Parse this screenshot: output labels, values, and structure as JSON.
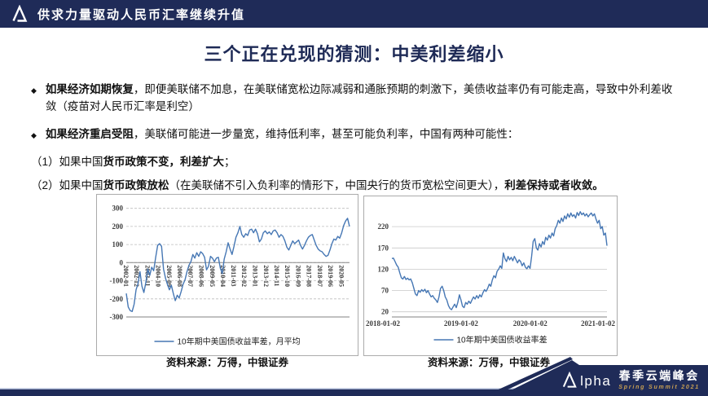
{
  "header": {
    "title": "供求力量驱动人民币汇率继续升值"
  },
  "title": "三个正在兑现的猜测：中美利差缩小",
  "bullet_char": "◆",
  "bullets": [
    {
      "bold": "如果经济如期恢复",
      "rest": "，即便美联储不加息，在美联储宽松边际减弱和通胀预期的刺激下，美债收益率仍有可能走高，导致中外利差收敛（疫苗对人民币汇率是利空）"
    },
    {
      "bold": "如果经济重启受阻",
      "rest": "，美联储可能进一步量宽，维持低利率，甚至可能负利率，中国有两种可能性："
    }
  ],
  "sub_points": [
    {
      "prefix": "（1）如果中国",
      "bold": "货币政策不变，利差扩大",
      "mid": "；",
      "bold2": ""
    },
    {
      "prefix": "（2）如果中国",
      "bold": "货币政策放松",
      "mid": "（在美联储不引入负利率的情形下，中国央行的货币宽松空间更大），",
      "bold2": "利差保持或者收敛。"
    }
  ],
  "sources": [
    "资料来源：万得，中银证券",
    "资料来源：万得，中银证券"
  ],
  "footer": {
    "logo_alpha": "lpha",
    "summit_cn": "春季云端峰会",
    "summit_en": "Spring Summit 2021"
  },
  "colors": {
    "navy": "#1F2B58",
    "line_blue": "#4677B4",
    "gold": "#C9A053"
  },
  "chart_data": [
    {
      "type": "line",
      "title": "",
      "legend": "10年期中美国债收益率差，月平均",
      "ylabel": "",
      "xlabel": "",
      "ylim": [
        -300,
        330
      ],
      "yticks": [
        300,
        200,
        100,
        0,
        -100,
        -200,
        -300
      ],
      "grid_dash": true,
      "zero_line": true,
      "x_rotated": true,
      "line_color": "#4677B4",
      "grid_color": "#BDBDBD",
      "size": [
        320,
        192
      ],
      "margins": {
        "l": 36,
        "r": 10,
        "t": 10,
        "pb": 150
      },
      "xticks": {
        "labels": [
          "2002-01",
          "2002-12",
          "2003-11",
          "2004-10",
          "2005-09",
          "2006-08",
          "2007-07",
          "2008-06",
          "2009-05",
          "2010-04",
          "2011-03",
          "2012-02",
          "2013-01",
          "2013-12",
          "2014-11",
          "2015-10",
          "2016-09",
          "2017-08",
          "2018-07",
          "2019-06",
          "2020-05"
        ],
        "pos": [
          0,
          0.048,
          0.096,
          0.145,
          0.193,
          0.241,
          0.289,
          0.337,
          0.386,
          0.434,
          0.482,
          0.53,
          0.579,
          0.627,
          0.675,
          0.723,
          0.772,
          0.82,
          0.868,
          0.916,
          0.965
        ]
      },
      "values": [
        -170,
        -245,
        -265,
        -270,
        -230,
        -150,
        -115,
        -50,
        -130,
        -165,
        -110,
        -35,
        -70,
        -25,
        -45,
        30,
        95,
        105,
        90,
        -35,
        -85,
        -120,
        -150,
        -125,
        -170,
        -210,
        -180,
        -195,
        -160,
        -120,
        -95,
        -50,
        -15,
        5,
        45,
        25,
        55,
        35,
        60,
        50,
        30,
        -40,
        -20,
        35,
        25,
        5,
        25,
        30,
        -30,
        -60,
        20,
        60,
        110,
        75,
        45,
        90,
        140,
        165,
        200,
        155,
        140,
        160,
        150,
        180,
        185,
        165,
        185,
        160,
        115,
        130,
        165,
        175,
        160,
        170,
        155,
        175,
        180,
        165,
        140,
        155,
        145,
        120,
        85,
        70,
        95,
        120,
        105,
        115,
        125,
        95,
        75,
        95,
        120,
        140,
        150,
        155,
        125,
        95,
        75,
        65,
        60,
        45,
        35,
        40,
        70,
        105,
        130,
        125,
        145,
        135,
        165,
        205,
        230,
        245,
        200
      ]
    },
    {
      "type": "line",
      "title": "",
      "legend": "10年期中美国债收益率差",
      "ylabel": "",
      "xlabel": "",
      "ylim": [
        8,
        268
      ],
      "yticks": [
        220,
        170,
        120,
        70,
        20
      ],
      "grid_dash": false,
      "zero_line": false,
      "x_rotated": false,
      "line_color": "#4677B4",
      "grid_color": "#C9C9C9",
      "size": [
        310,
        188
      ],
      "margins": {
        "l": 34,
        "r": 12,
        "t": 12,
        "pb": 148
      },
      "xticks": {
        "labels": [
          "2018-01-02",
          "2019-01-02",
          "2020-01-02",
          "2021-01-02"
        ],
        "pos": [
          0,
          0.3216,
          0.6433,
          0.9648
        ]
      },
      "values": [
        145,
        146,
        138,
        130,
        125,
        112,
        100,
        97,
        103,
        96,
        99,
        95,
        97,
        88,
        75,
        62,
        58,
        70,
        66,
        72,
        68,
        73,
        65,
        70,
        62,
        55,
        58,
        52,
        48,
        42,
        55,
        75,
        80,
        70,
        55,
        48,
        35,
        28,
        25,
        32,
        38,
        30,
        42,
        60,
        48,
        33,
        30,
        42,
        38,
        45,
        40,
        48,
        55,
        50,
        58,
        52,
        60,
        55,
        65,
        72,
        68,
        75,
        85,
        80,
        95,
        105,
        100,
        115,
        120,
        128,
        122,
        158,
        145,
        138,
        150,
        142,
        148,
        140,
        150,
        143,
        135,
        142,
        138,
        128,
        135,
        125,
        121,
        128,
        122,
        150,
        185,
        192,
        170,
        165,
        180,
        172,
        185,
        178,
        195,
        188,
        200,
        193,
        205,
        198,
        215,
        222,
        235,
        228,
        240,
        232,
        245,
        238,
        250,
        242,
        252,
        244,
        248,
        240,
        253,
        246,
        255,
        248,
        252,
        245,
        250,
        243,
        248,
        252,
        245,
        250,
        238,
        228,
        235,
        215,
        220,
        200,
        205,
        175
      ]
    }
  ]
}
